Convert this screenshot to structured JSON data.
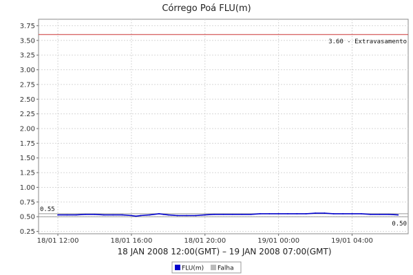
{
  "chart_data": {
    "type": "line",
    "title": "Córrego Poá FLU(m)",
    "xlabel": "18 JAN 2008 12:00(GMT) – 19 JAN 2008 07:00(GMT)",
    "ylabel": "",
    "x_ticks": [
      "18/01 12:00",
      "18/01 16:00",
      "18/01 20:00",
      "19/01 00:00",
      "19/01 04:00"
    ],
    "x_tick_hours": [
      0,
      4,
      8,
      12,
      16
    ],
    "xlim_hours": [
      -1.05,
      19.05
    ],
    "y_ticks": [
      "0.25",
      "0.50",
      "0.75",
      "1.00",
      "1.25",
      "1.50",
      "1.75",
      "2.00",
      "2.25",
      "2.50",
      "2.75",
      "3.00",
      "3.25",
      "3.50",
      "3.75"
    ],
    "ylim": [
      0.21,
      3.86
    ],
    "grid": true,
    "legend_position": "bottom-center",
    "thresholds": [
      {
        "value": 3.6,
        "label": "3.60 - Extravasamento",
        "color": "#cc3333"
      },
      {
        "value": 0.55,
        "label": "0.55",
        "color": "#999999"
      },
      {
        "value": 0.5,
        "label": "0.50",
        "color": "#999999"
      }
    ],
    "series": [
      {
        "name": "FLU(m)",
        "color": "#0000cc",
        "x_hours": [
          0,
          0.5,
          1,
          1.5,
          2,
          2.5,
          3,
          3.5,
          4,
          4.25,
          4.5,
          5,
          5.5,
          5.75,
          6,
          6.5,
          7,
          7.5,
          8,
          8.5,
          9,
          9.5,
          10,
          10.5,
          11,
          11.5,
          12,
          12.5,
          13,
          13.5,
          14,
          14.5,
          15,
          15.5,
          16,
          16.5,
          17,
          17.5,
          18,
          18.5
        ],
        "values": [
          0.53,
          0.53,
          0.53,
          0.54,
          0.54,
          0.53,
          0.53,
          0.53,
          0.52,
          0.51,
          0.52,
          0.53,
          0.55,
          0.54,
          0.53,
          0.52,
          0.52,
          0.52,
          0.53,
          0.54,
          0.54,
          0.54,
          0.54,
          0.54,
          0.55,
          0.55,
          0.55,
          0.55,
          0.55,
          0.55,
          0.56,
          0.56,
          0.55,
          0.55,
          0.55,
          0.55,
          0.54,
          0.54,
          0.54,
          0.53
        ]
      },
      {
        "name": "Falha",
        "color": "#bbbbbb",
        "x_hours": [],
        "values": []
      }
    ]
  }
}
